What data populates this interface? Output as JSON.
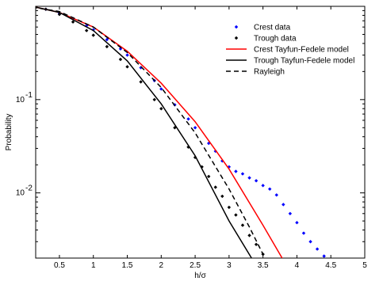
{
  "chart_data": {
    "type": "scatter",
    "xlabel": "h/σ",
    "ylabel": "Probability",
    "xlim": [
      0.15,
      5
    ],
    "ylim": [
      0.002,
      1
    ],
    "yscale": "log",
    "x_ticks": [
      {
        "value": 0.5,
        "label": "0.5"
      },
      {
        "value": 1,
        "label": "1"
      },
      {
        "value": 1.5,
        "label": "1.5"
      },
      {
        "value": 2,
        "label": "2"
      },
      {
        "value": 2.5,
        "label": "2.5"
      },
      {
        "value": 3,
        "label": "3"
      },
      {
        "value": 3.5,
        "label": "3.5"
      },
      {
        "value": 4,
        "label": "4"
      },
      {
        "value": 4.5,
        "label": "4.5"
      },
      {
        "value": 5,
        "label": "5"
      }
    ],
    "y_ticks": [
      {
        "value": 0.1,
        "base": "10",
        "exp": "-1"
      },
      {
        "value": 0.01,
        "base": "10",
        "exp": "-2"
      }
    ],
    "grid": false,
    "legend_position": "top-right",
    "series": [
      {
        "name": "Crest data",
        "style": "points",
        "color": "#0000ff",
        "x": [
          0.3,
          0.5,
          0.7,
          0.9,
          1.0,
          1.2,
          1.4,
          1.5,
          1.7,
          1.9,
          2.0,
          2.2,
          2.4,
          2.5,
          2.7,
          2.8,
          2.9,
          3.0,
          3.1,
          3.2,
          3.3,
          3.4,
          3.5,
          3.6,
          3.7,
          3.8,
          3.9,
          4.0,
          4.1,
          4.2,
          4.3,
          4.4
        ],
        "y": [
          0.93,
          0.84,
          0.74,
          0.62,
          0.56,
          0.44,
          0.35,
          0.3,
          0.22,
          0.16,
          0.13,
          0.088,
          0.062,
          0.05,
          0.034,
          0.028,
          0.022,
          0.019,
          0.017,
          0.016,
          0.0145,
          0.0135,
          0.012,
          0.011,
          0.0095,
          0.0075,
          0.006,
          0.0048,
          0.0037,
          0.003,
          0.0025,
          0.0021
        ]
      },
      {
        "name": "Trough data",
        "style": "points",
        "color": "#000000",
        "x": [
          0.3,
          0.5,
          0.7,
          0.9,
          1.0,
          1.2,
          1.4,
          1.5,
          1.7,
          1.9,
          2.0,
          2.2,
          2.4,
          2.5,
          2.6,
          2.7,
          2.8,
          2.9,
          3.0,
          3.1,
          3.2,
          3.3,
          3.4,
          3.5
        ],
        "y": [
          0.93,
          0.82,
          0.68,
          0.55,
          0.49,
          0.37,
          0.27,
          0.225,
          0.155,
          0.1,
          0.08,
          0.05,
          0.031,
          0.024,
          0.019,
          0.015,
          0.0115,
          0.0092,
          0.007,
          0.0058,
          0.0045,
          0.0035,
          0.0028,
          0.0022
        ]
      },
      {
        "name": "Crest Tayfun-Fedele model",
        "style": "solid",
        "color": "#ff0000",
        "x": [
          0.1,
          0.5,
          1.0,
          1.5,
          2.0,
          2.5,
          3.0,
          3.5,
          3.8
        ],
        "y": [
          1.0,
          0.86,
          0.6,
          0.33,
          0.15,
          0.058,
          0.018,
          0.0045,
          0.0019
        ]
      },
      {
        "name": "Trough Tayfun-Fedele model",
        "style": "solid",
        "color": "#000000",
        "x": [
          0.1,
          0.5,
          1.0,
          1.5,
          2.0,
          2.5,
          3.0,
          3.35
        ],
        "y": [
          1.0,
          0.86,
          0.55,
          0.26,
          0.09,
          0.025,
          0.005,
          0.0019
        ]
      },
      {
        "name": "Rayleigh",
        "style": "dashed",
        "color": "#000000",
        "x": [
          0.1,
          0.5,
          1.0,
          1.5,
          2.0,
          2.5,
          3.0,
          3.3,
          3.5
        ],
        "y": [
          0.98,
          0.88,
          0.6,
          0.32,
          0.135,
          0.044,
          0.011,
          0.0043,
          0.0022
        ]
      }
    ]
  }
}
